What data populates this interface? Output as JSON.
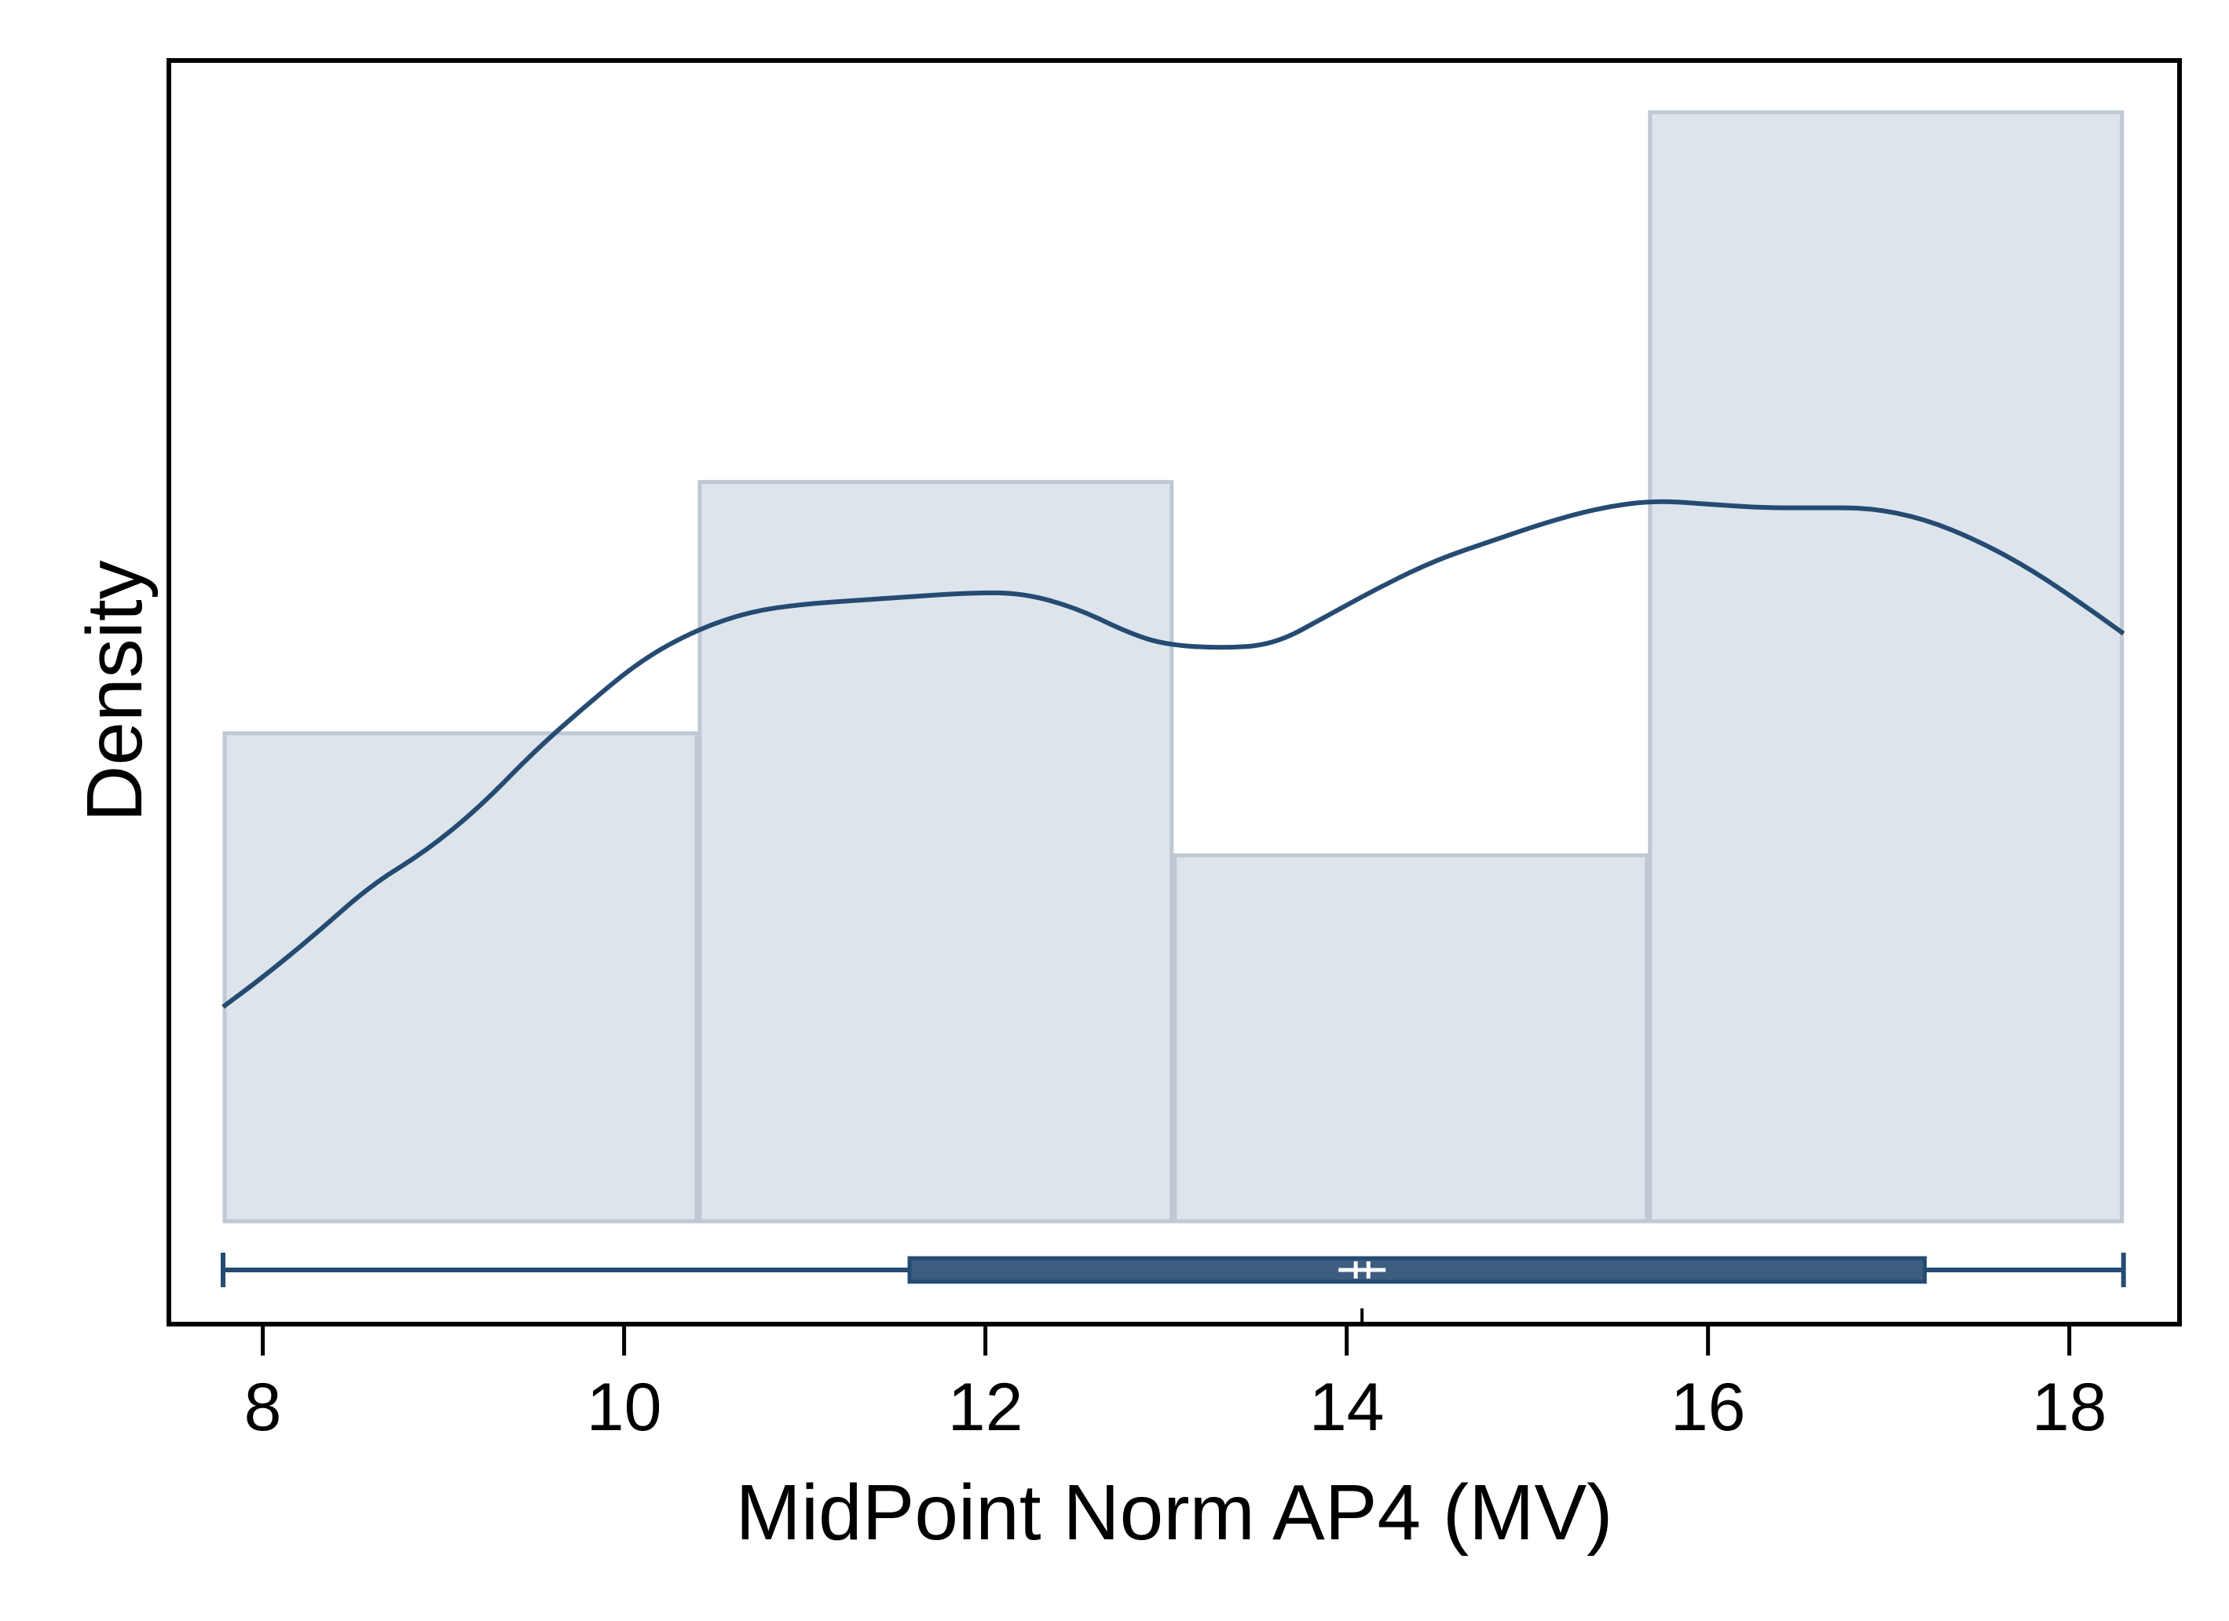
{
  "chart_data": {
    "type": "histogram",
    "title": "",
    "xlabel": "MidPoint Norm AP4 (MV)",
    "ylabel": "Density",
    "xlim": [
      7.48,
      18.61
    ],
    "ylim": [
      0,
      0.238
    ],
    "x_ticks": [
      "8",
      "10",
      "12",
      "14",
      "16",
      "18"
    ],
    "grid": false,
    "legend": "none",
    "bins": [
      {
        "start": 7.78,
        "end": 10.41,
        "density": 0.132
      },
      {
        "start": 10.41,
        "end": 13.04,
        "density": 0.2
      },
      {
        "start": 13.04,
        "end": 15.67,
        "density": 0.099
      },
      {
        "start": 15.67,
        "end": 18.3,
        "density": 0.3
      }
    ],
    "density_curve": {
      "x": [
        7.78,
        8.0,
        8.3,
        8.6,
        8.9,
        9.2,
        9.5,
        9.8,
        10.1,
        10.4,
        10.7,
        11.0,
        11.3,
        11.6,
        11.9,
        12.2,
        12.5,
        12.8,
        13.0,
        13.3,
        13.6,
        13.9,
        14.2,
        14.5,
        14.8,
        15.1,
        15.4,
        15.7,
        16.0,
        16.3,
        16.6,
        16.9,
        17.2,
        17.5,
        17.8,
        18.1,
        18.3
      ],
      "y": [
        0.058,
        0.066,
        0.078,
        0.091,
        0.1,
        0.112,
        0.127,
        0.14,
        0.152,
        0.16,
        0.165,
        0.167,
        0.168,
        0.169,
        0.17,
        0.17,
        0.166,
        0.159,
        0.156,
        0.155,
        0.156,
        0.164,
        0.172,
        0.179,
        0.184,
        0.189,
        0.193,
        0.195,
        0.194,
        0.193,
        0.193,
        0.193,
        0.19,
        0.184,
        0.176,
        0.166,
        0.159
      ]
    },
    "boxplot": {
      "whisker_low": 7.78,
      "q1": 11.58,
      "median": 14.05,
      "mean": 14.12,
      "q3": 17.2,
      "whisker_high": 18.3
    },
    "colors": {
      "bar_fill": "#dde4eb",
      "bar_stroke": "#bfc9d3",
      "curve": "#254b72",
      "box_fill": "#3c5d80",
      "box_stroke": "#254b72",
      "frame": "#000000"
    }
  }
}
